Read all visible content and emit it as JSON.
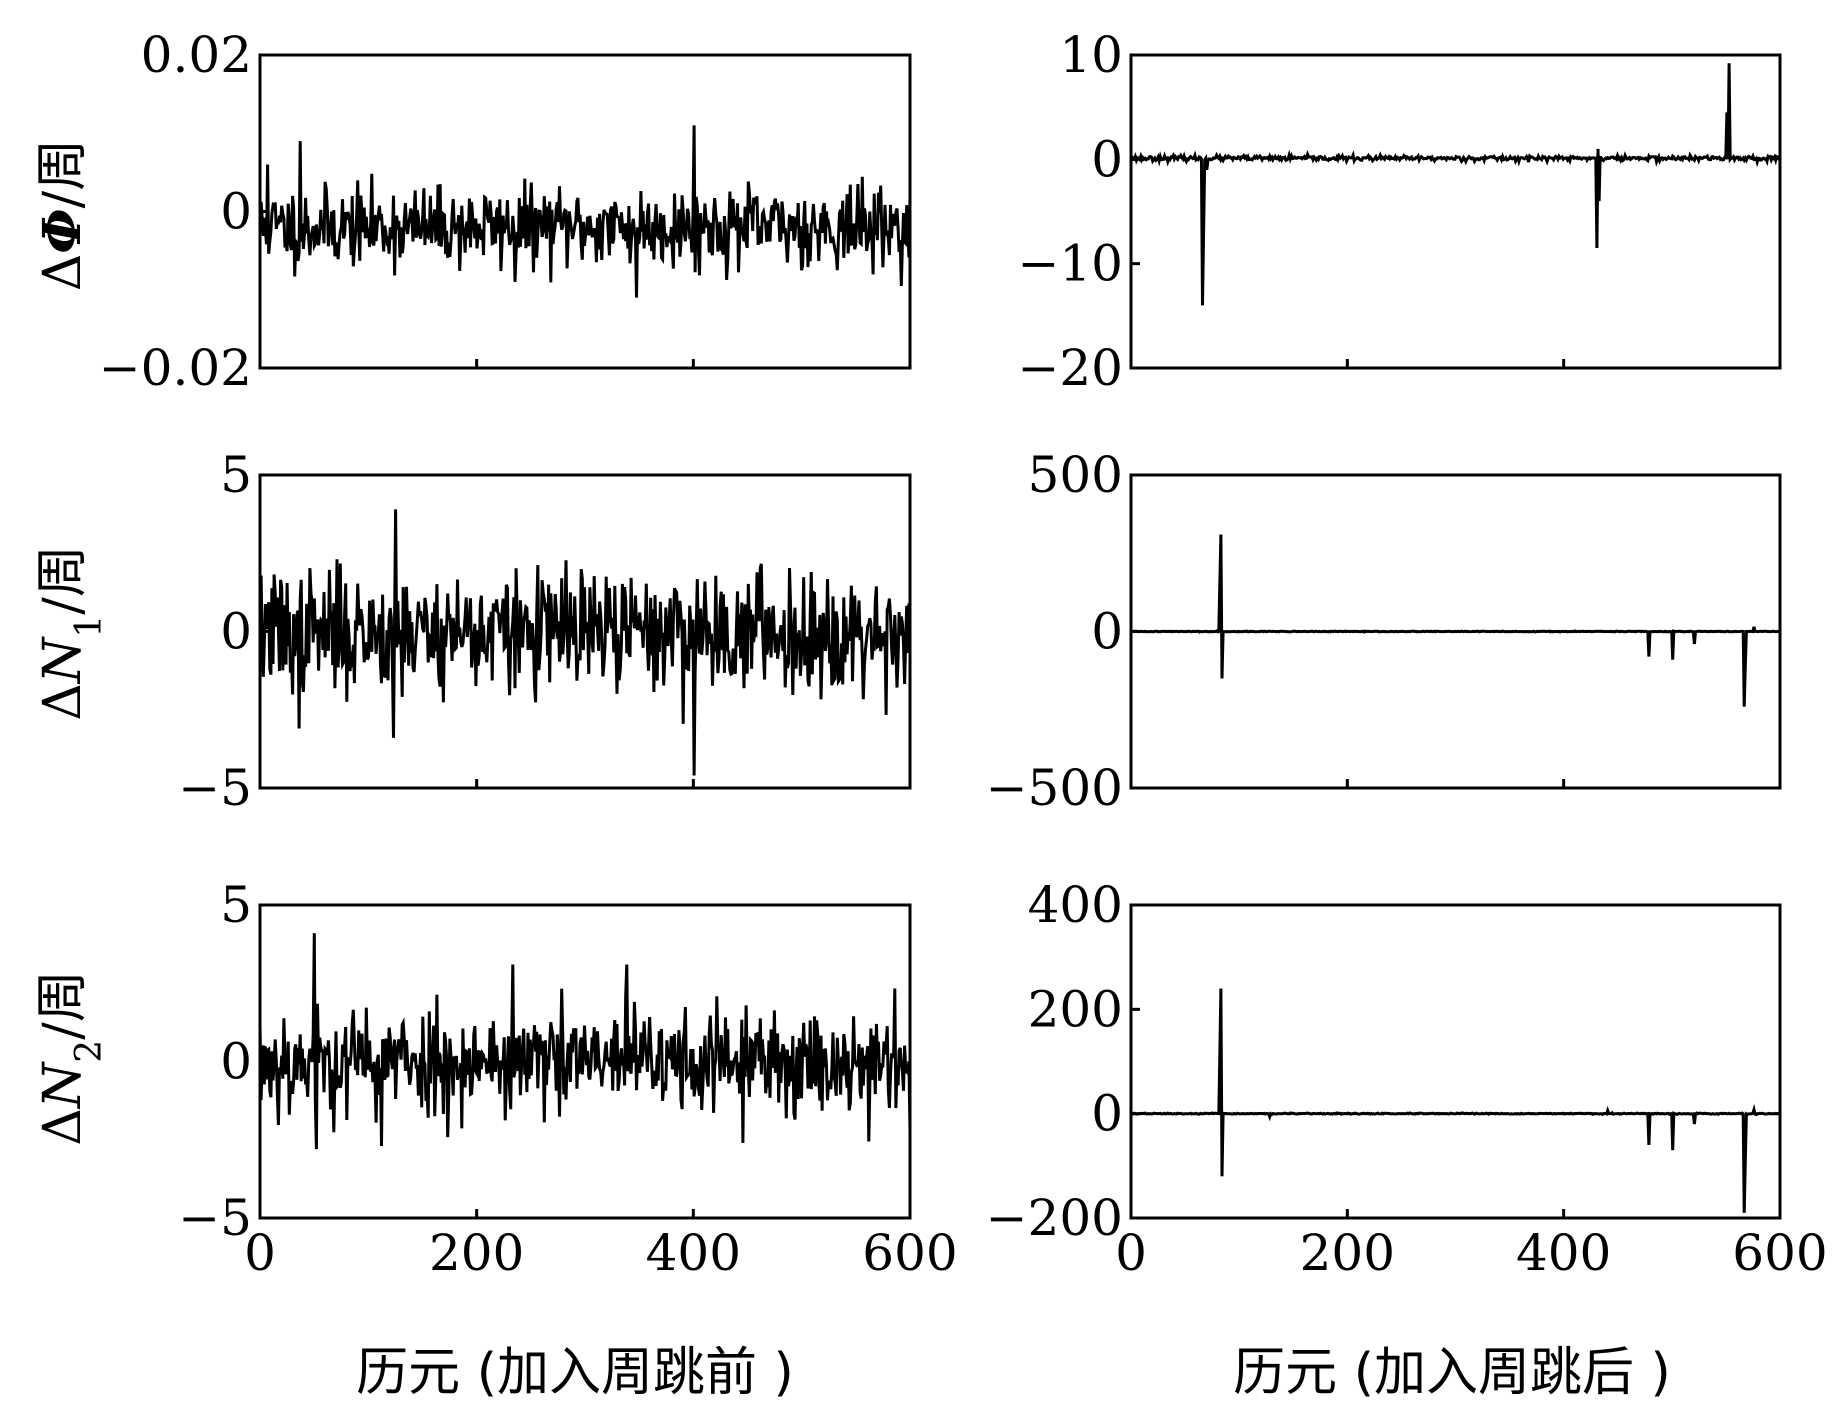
{
  "xlabels": {
    "left": "历元 (加入周跳前 )",
    "right": "历元 (加入周跳后 )"
  },
  "ylabels": [
    {
      "prefix": "Δ",
      "symbol": "Φ",
      "sub": "",
      "unit": "/周"
    },
    {
      "prefix": "Δ",
      "symbol": "N",
      "sub": "1",
      "unit": "/周"
    },
    {
      "prefix": "Δ",
      "symbol": "N",
      "sub": "2",
      "unit": "/周"
    }
  ],
  "chart_data": [
    {
      "id": "dphi-before",
      "type": "line",
      "row": 0,
      "col": 0,
      "xlim": [
        0,
        600
      ],
      "ylim": [
        -0.02,
        0.02
      ],
      "yticks": [
        0.02,
        0,
        -0.02
      ],
      "ytick_labels": [
        "0.02",
        "0",
        "−0.02"
      ],
      "xticks": [
        0,
        200,
        400,
        600
      ],
      "xtick_labels": [],
      "noise": {
        "n": 600,
        "mean": -0.002,
        "std": 0.0025,
        "seed": 11
      },
      "spikes": [
        [
          37,
          0.009
        ],
        [
          235,
          -0.009
        ],
        [
          347,
          -0.011
        ],
        [
          400,
          0.011
        ],
        [
          7,
          0.006
        ]
      ]
    },
    {
      "id": "dphi-after",
      "type": "line",
      "row": 0,
      "col": 1,
      "xlim": [
        0,
        600
      ],
      "ylim": [
        -20,
        10
      ],
      "yticks": [
        10,
        0,
        -10,
        -20
      ],
      "ytick_labels": [
        "10",
        "0",
        "−10",
        "−20"
      ],
      "xticks": [
        0,
        200,
        400,
        600
      ],
      "xtick_labels": [],
      "noise": {
        "n": 600,
        "mean": 0.1,
        "std": 0.12,
        "seed": 23
      },
      "spikes": [
        [
          66,
          -14
        ],
        [
          67,
          -7
        ],
        [
          70,
          -1
        ],
        [
          430,
          -8.5
        ],
        [
          431,
          1
        ],
        [
          432,
          -4
        ],
        [
          550,
          4.5
        ],
        [
          552,
          9.2
        ]
      ]
    },
    {
      "id": "dn1-before",
      "type": "line",
      "row": 1,
      "col": 0,
      "xlim": [
        0,
        600
      ],
      "ylim": [
        -5,
        5
      ],
      "yticks": [
        5,
        0,
        -5
      ],
      "ytick_labels": [
        "5",
        "0",
        "−5"
      ],
      "xticks": [
        0,
        200,
        400,
        600
      ],
      "xtick_labels": [],
      "noise": {
        "n": 600,
        "mean": 0.0,
        "std": 0.95,
        "seed": 37
      },
      "spikes": [
        [
          125,
          3.9
        ],
        [
          400,
          -4.6
        ],
        [
          123,
          -3.4
        ],
        [
          36,
          -3.1
        ]
      ]
    },
    {
      "id": "dn1-after",
      "type": "line",
      "row": 1,
      "col": 1,
      "xlim": [
        0,
        600
      ],
      "ylim": [
        -500,
        500
      ],
      "yticks": [
        500,
        0,
        -500
      ],
      "ytick_labels": [
        "500",
        "0",
        "−500"
      ],
      "xticks": [
        0,
        200,
        400,
        600
      ],
      "xtick_labels": [],
      "noise": {
        "n": 600,
        "mean": 0.0,
        "std": 0.6,
        "seed": 41
      },
      "spikes": [
        [
          82,
          150
        ],
        [
          83,
          310
        ],
        [
          84,
          -150
        ],
        [
          478,
          -80
        ],
        [
          500,
          -90
        ],
        [
          520,
          -40
        ],
        [
          566,
          -240
        ],
        [
          567,
          -110
        ],
        [
          575,
          15
        ]
      ]
    },
    {
      "id": "dn2-before",
      "type": "line",
      "row": 2,
      "col": 0,
      "xlim": [
        0,
        600
      ],
      "ylim": [
        -5,
        5
      ],
      "yticks": [
        5,
        0,
        -5
      ],
      "ytick_labels": [
        "5",
        "0",
        "−5"
      ],
      "xticks": [
        0,
        200,
        400,
        600
      ],
      "xtick_labels": [
        "0",
        "200",
        "400",
        "600"
      ],
      "noise": {
        "n": 600,
        "mean": 0.0,
        "std": 0.85,
        "seed": 53
      },
      "spikes": [
        [
          50,
          4.1
        ],
        [
          52,
          -2.8
        ],
        [
          112,
          -2.7
        ],
        [
          233,
          3.1
        ],
        [
          338,
          3.1
        ],
        [
          445,
          -2.6
        ]
      ]
    },
    {
      "id": "dn2-after",
      "type": "line",
      "row": 2,
      "col": 1,
      "xlim": [
        0,
        600
      ],
      "ylim": [
        -200,
        400
      ],
      "yticks": [
        400,
        200,
        0,
        -200
      ],
      "ytick_labels": [
        "400",
        "200",
        "0",
        "−200"
      ],
      "xticks": [
        0,
        200,
        400,
        600
      ],
      "xtick_labels": [
        "0",
        "200",
        "400",
        "600"
      ],
      "noise": {
        "n": 600,
        "mean": 0.0,
        "std": 0.5,
        "seed": 67
      },
      "spikes": [
        [
          82,
          110
        ],
        [
          83,
          240
        ],
        [
          84,
          -120
        ],
        [
          128,
          -6
        ],
        [
          440,
          6
        ],
        [
          478,
          -60
        ],
        [
          500,
          -70
        ],
        [
          520,
          -20
        ],
        [
          566,
          -190
        ],
        [
          567,
          -90
        ],
        [
          575,
          8
        ]
      ]
    }
  ]
}
